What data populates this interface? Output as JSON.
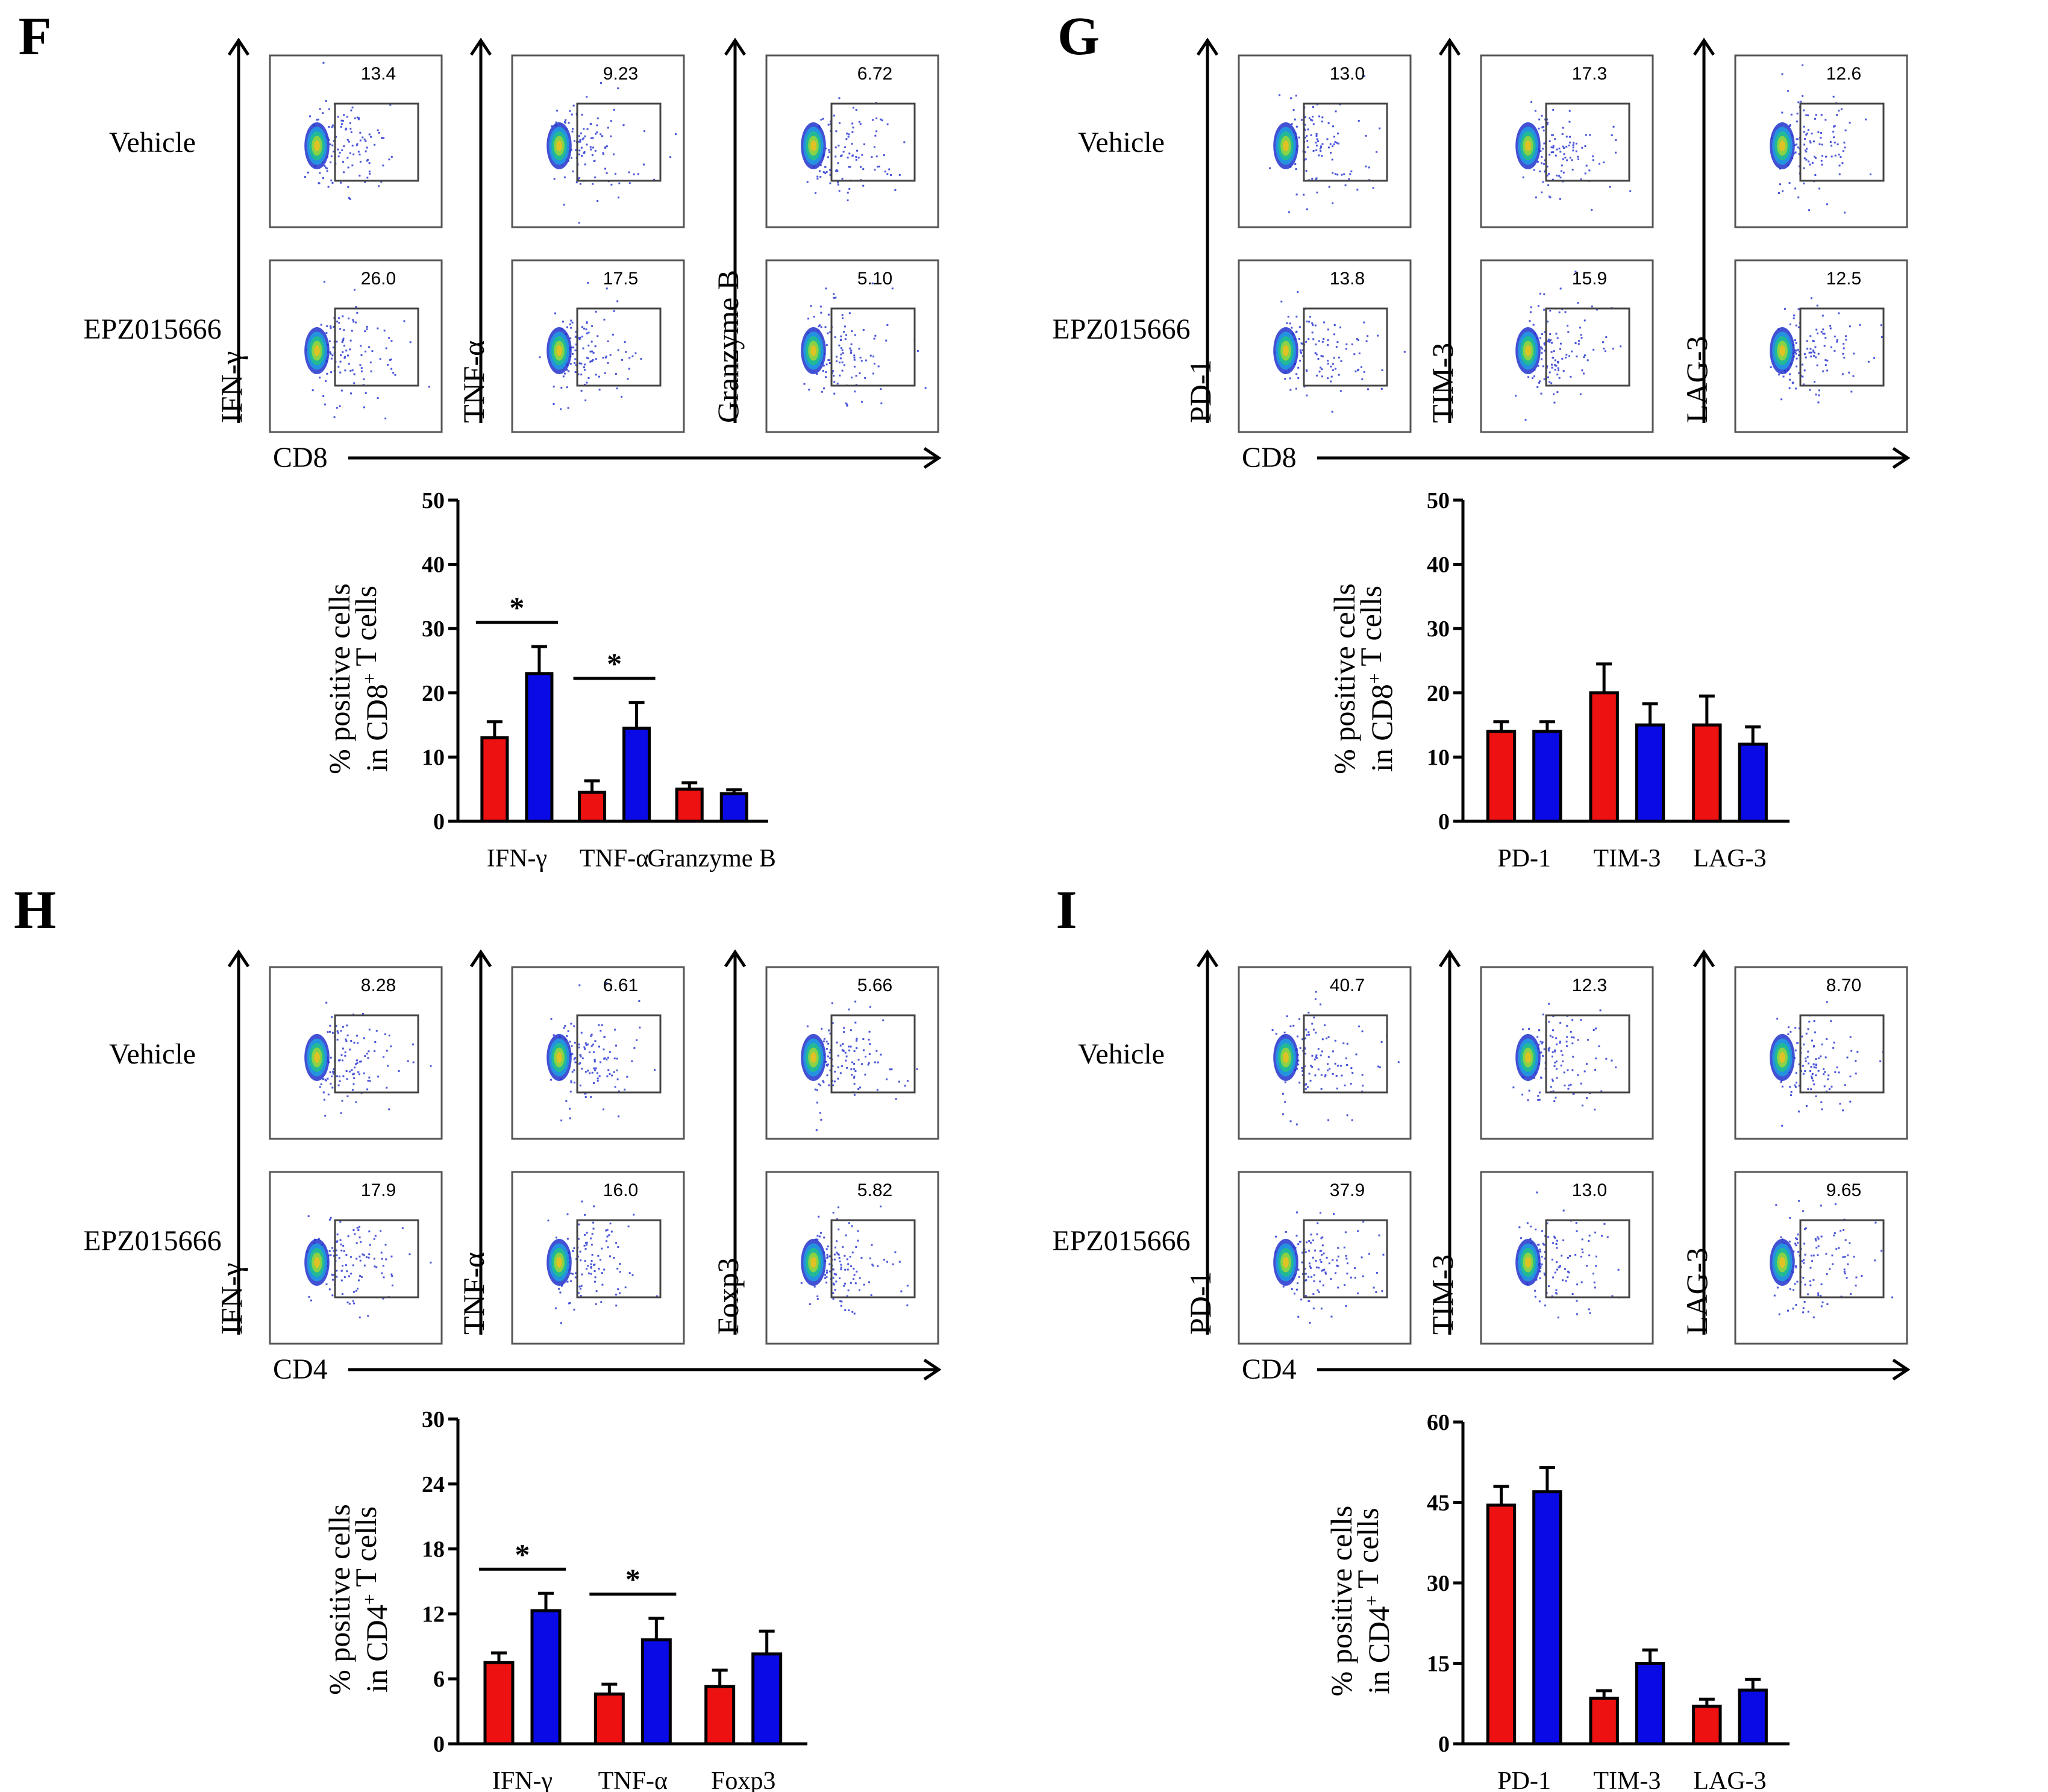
{
  "colors": {
    "vehicle": "#ee1111",
    "epz": "#0a0ae6",
    "ink": "#000000"
  },
  "chart_data": [
    {
      "panel": "F",
      "type": "bar",
      "flow": {
        "rows": [
          "Vehicle",
          "EPZ015666"
        ],
        "xlabel": "CD8",
        "columns": [
          {
            "ylabel": "IFN-γ",
            "values": [
              "13.4",
              "26.0"
            ]
          },
          {
            "ylabel": "TNF-α",
            "values": [
              "9.23",
              "17.5"
            ]
          },
          {
            "ylabel": "Granzyme  B",
            "values": [
              "6.72",
              "5.10"
            ]
          }
        ]
      },
      "categories": [
        "IFN-γ",
        "TNF-α",
        "Granzyme  B"
      ],
      "series": [
        {
          "name": "Vehicle",
          "values": [
            13,
            4.5,
            5
          ],
          "errors": [
            2.5,
            1.8,
            1.0
          ]
        },
        {
          "name": "EPZ015666",
          "values": [
            23,
            14.5,
            4.3
          ],
          "errors": [
            4.2,
            4.0,
            0.6
          ]
        }
      ],
      "ylabel_lines": [
        "% positive cells",
        "in CD8<sup>+</sup> T cells"
      ],
      "ylim": [
        0,
        50
      ],
      "yticks": [
        "0",
        "10",
        "20",
        "30",
        "40",
        "50"
      ],
      "significance": [
        {
          "category": 0,
          "label": "*"
        },
        {
          "category": 1,
          "label": "*"
        }
      ]
    },
    {
      "panel": "G",
      "type": "bar",
      "flow": {
        "rows": [
          "Vehicle",
          "EPZ015666"
        ],
        "xlabel": "CD8",
        "columns": [
          {
            "ylabel": "PD-1",
            "values": [
              "13.0",
              "13.8"
            ]
          },
          {
            "ylabel": "TIM-3",
            "values": [
              "17.3",
              "15.9"
            ]
          },
          {
            "ylabel": "LAG-3",
            "values": [
              "12.6",
              "12.5"
            ]
          }
        ]
      },
      "categories": [
        "PD-1",
        "TIM-3",
        "LAG-3"
      ],
      "series": [
        {
          "name": "Vehicle",
          "values": [
            14,
            20,
            15
          ],
          "errors": [
            1.5,
            4.5,
            4.5
          ]
        },
        {
          "name": "EPZ015666",
          "values": [
            14,
            15,
            12
          ],
          "errors": [
            1.5,
            3.3,
            2.7
          ]
        }
      ],
      "ylabel_lines": [
        "% positive cells",
        "in CD8<sup>+</sup> T cells"
      ],
      "ylim": [
        0,
        50
      ],
      "yticks": [
        "0",
        "10",
        "20",
        "30",
        "40",
        "50"
      ],
      "significance": []
    },
    {
      "panel": "H",
      "type": "bar",
      "flow": {
        "rows": [
          "Vehicle",
          "EPZ015666"
        ],
        "xlabel": "CD4",
        "columns": [
          {
            "ylabel": "IFN-γ",
            "values": [
              "8.28",
              "17.9"
            ]
          },
          {
            "ylabel": "TNF-α",
            "values": [
              "6.61",
              "16.0"
            ]
          },
          {
            "ylabel": "Foxp3",
            "values": [
              "5.66",
              "5.82"
            ]
          }
        ]
      },
      "categories": [
        "IFN-γ",
        "TNF-α",
        "Foxp3"
      ],
      "series": [
        {
          "name": "Vehicle",
          "values": [
            7.5,
            4.6,
            5.3
          ],
          "errors": [
            0.9,
            0.9,
            1.5
          ]
        },
        {
          "name": "EPZ015666",
          "values": [
            12.3,
            9.6,
            8.3
          ],
          "errors": [
            1.6,
            2.0,
            2.1
          ]
        }
      ],
      "ylabel_lines": [
        "% positive cells",
        "in CD4<sup>+</sup> T cells"
      ],
      "ylim": [
        0,
        30
      ],
      "yticks": [
        "0",
        "6",
        "12",
        "18",
        "24",
        "30"
      ],
      "significance": [
        {
          "category": 0,
          "label": "*"
        },
        {
          "category": 1,
          "label": "*"
        }
      ]
    },
    {
      "panel": "I",
      "type": "bar",
      "flow": {
        "rows": [
          "Vehicle",
          "EPZ015666"
        ],
        "xlabel": "CD4",
        "columns": [
          {
            "ylabel": "PD-1",
            "values": [
              "40.7",
              "37.9"
            ]
          },
          {
            "ylabel": "TIM-3",
            "values": [
              "12.3",
              "13.0"
            ]
          },
          {
            "ylabel": "LAG-3",
            "values": [
              "8.70",
              "9.65"
            ]
          }
        ]
      },
      "categories": [
        "PD-1",
        "TIM-3",
        "LAG-3"
      ],
      "series": [
        {
          "name": "Vehicle",
          "values": [
            44.5,
            8.5,
            7
          ],
          "errors": [
            3.5,
            1.4,
            1.3
          ]
        },
        {
          "name": "EPZ015666",
          "values": [
            47,
            15,
            10
          ],
          "errors": [
            4.5,
            2.5,
            2.0
          ]
        }
      ],
      "ylabel_lines": [
        "% positive cells",
        "in CD4<sup>+</sup> T cells"
      ],
      "ylim": [
        0,
        60
      ],
      "yticks": [
        "0",
        "15",
        "30",
        "45",
        "60"
      ],
      "significance": []
    }
  ]
}
